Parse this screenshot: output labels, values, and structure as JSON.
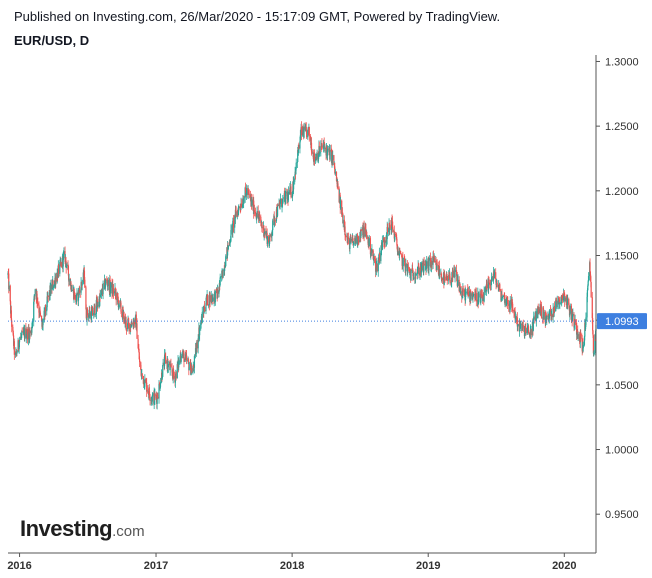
{
  "header": {
    "published": "Published on Investing.com, 26/Mar/2020 - 15:17:09 GMT, Powered by TradingView.",
    "symbol": "EUR/USD, D"
  },
  "logo": {
    "main": "Investing",
    "suffix": ".com"
  },
  "colors": {
    "up": "#26a69a",
    "down": "#ef5350",
    "last_price_tag": "#3d7fe0",
    "dotted_line": "#3d7fe0",
    "axis": "#555555"
  },
  "chart_data": {
    "type": "candlestick",
    "title": "EUR/USD, D",
    "x_ticks": [
      "2016",
      "2017",
      "2018",
      "2019",
      "2020"
    ],
    "y_ticks": [
      "1.3000",
      "1.2500",
      "1.2000",
      "1.1500",
      "1.1000",
      "1.0500",
      "1.0000",
      "0.9500"
    ],
    "ylim": [
      0.92,
      1.305
    ],
    "xlim": [
      "2015-12-01",
      "2020-03-26"
    ],
    "last_price": 1.0993,
    "last_price_label": "1.0993",
    "grid": false,
    "legend": "none",
    "close_path": [
      [
        "2015-12-01",
        1.135
      ],
      [
        "2015-12-10",
        1.1
      ],
      [
        "2015-12-20",
        1.07
      ],
      [
        "2016-01-01",
        1.085
      ],
      [
        "2016-01-15",
        1.09
      ],
      [
        "2016-02-01",
        1.09
      ],
      [
        "2016-02-12",
        1.125
      ],
      [
        "2016-03-01",
        1.095
      ],
      [
        "2016-03-20",
        1.12
      ],
      [
        "2016-05-01",
        1.15
      ],
      [
        "2016-05-15",
        1.13
      ],
      [
        "2016-06-01",
        1.115
      ],
      [
        "2016-06-23",
        1.135
      ],
      [
        "2016-06-27",
        1.105
      ],
      [
        "2016-07-15",
        1.105
      ],
      [
        "2016-08-01",
        1.115
      ],
      [
        "2016-08-20",
        1.13
      ],
      [
        "2016-09-15",
        1.12
      ],
      [
        "2016-10-15",
        1.095
      ],
      [
        "2016-11-08",
        1.1
      ],
      [
        "2016-11-20",
        1.06
      ],
      [
        "2016-12-20",
        1.04
      ],
      [
        "2017-01-03",
        1.04
      ],
      [
        "2017-01-25",
        1.07
      ],
      [
        "2017-02-20",
        1.055
      ],
      [
        "2017-03-10",
        1.075
      ],
      [
        "2017-04-10",
        1.06
      ],
      [
        "2017-04-25",
        1.09
      ],
      [
        "2017-05-15",
        1.115
      ],
      [
        "2017-06-15",
        1.12
      ],
      [
        "2017-07-01",
        1.14
      ],
      [
        "2017-07-20",
        1.165
      ],
      [
        "2017-08-01",
        1.18
      ],
      [
        "2017-09-01",
        1.2
      ],
      [
        "2017-09-15",
        1.19
      ],
      [
        "2017-10-01",
        1.18
      ],
      [
        "2017-11-01",
        1.16
      ],
      [
        "2017-11-15",
        1.18
      ],
      [
        "2017-12-01",
        1.19
      ],
      [
        "2018-01-01",
        1.2
      ],
      [
        "2018-01-25",
        1.245
      ],
      [
        "2018-02-15",
        1.245
      ],
      [
        "2018-03-01",
        1.225
      ],
      [
        "2018-03-25",
        1.235
      ],
      [
        "2018-04-20",
        1.225
      ],
      [
        "2018-05-10",
        1.19
      ],
      [
        "2018-05-30",
        1.16
      ],
      [
        "2018-06-15",
        1.16
      ],
      [
        "2018-07-15",
        1.17
      ],
      [
        "2018-08-15",
        1.14
      ],
      [
        "2018-09-01",
        1.16
      ],
      [
        "2018-09-25",
        1.175
      ],
      [
        "2018-10-15",
        1.15
      ],
      [
        "2018-11-15",
        1.135
      ],
      [
        "2018-12-15",
        1.14
      ],
      [
        "2019-01-15",
        1.145
      ],
      [
        "2019-02-15",
        1.13
      ],
      [
        "2019-03-15",
        1.135
      ],
      [
        "2019-04-01",
        1.12
      ],
      [
        "2019-05-01",
        1.12
      ],
      [
        "2019-05-25",
        1.115
      ],
      [
        "2019-06-25",
        1.135
      ],
      [
        "2019-07-15",
        1.12
      ],
      [
        "2019-08-15",
        1.11
      ],
      [
        "2019-09-01",
        1.095
      ],
      [
        "2019-10-01",
        1.09
      ],
      [
        "2019-10-25",
        1.11
      ],
      [
        "2019-11-15",
        1.1
      ],
      [
        "2019-12-15",
        1.115
      ],
      [
        "2020-01-01",
        1.12
      ],
      [
        "2020-01-25",
        1.1
      ],
      [
        "2020-02-15",
        1.085
      ],
      [
        "2020-02-20",
        1.078
      ],
      [
        "2020-03-01",
        1.11
      ],
      [
        "2020-03-09",
        1.145
      ],
      [
        "2020-03-15",
        1.11
      ],
      [
        "2020-03-20",
        1.07
      ],
      [
        "2020-03-26",
        1.0993
      ]
    ]
  }
}
